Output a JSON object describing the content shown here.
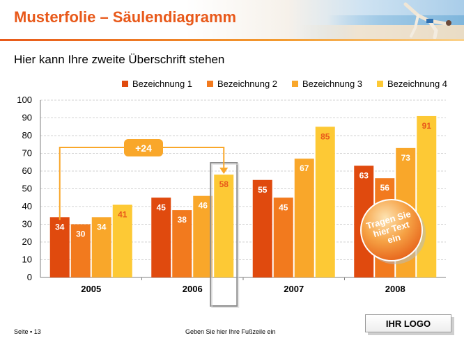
{
  "header": {
    "title": "Musterfolie – Säulendiagramm"
  },
  "subtitle": "Hier kann Ihre zweite Überschrift stehen",
  "footer": {
    "page": "Seite ▪ 13",
    "text": "Geben Sie hier Ihre Fußzeile ein",
    "logo": "IHR LOGO"
  },
  "colors": {
    "series": [
      "#e04a0e",
      "#f27a1e",
      "#f9a72a",
      "#fdc935"
    ],
    "accent": "#e8591a",
    "label_highlight": "#e8591a"
  },
  "callouts": {
    "delta_label": "+24",
    "bubble_text": "Tragen Sie hier Text ein"
  },
  "chart_data": {
    "type": "bar",
    "categories": [
      "2005",
      "2006",
      "2007",
      "2008"
    ],
    "series": [
      {
        "name": "Bezeichnung 1",
        "values": [
          34,
          45,
          55,
          63
        ]
      },
      {
        "name": "Bezeichnung 2",
        "values": [
          30,
          38,
          45,
          56
        ]
      },
      {
        "name": "Bezeichnung 3",
        "values": [
          34,
          46,
          67,
          73
        ]
      },
      {
        "name": "Bezeichnung 4",
        "values": [
          41,
          58,
          85,
          91
        ]
      }
    ],
    "ylim": [
      0,
      100
    ],
    "yticks": [
      0,
      10,
      20,
      30,
      40,
      50,
      60,
      70,
      80,
      90,
      100
    ],
    "grid": true,
    "legend_position": "top-right"
  }
}
